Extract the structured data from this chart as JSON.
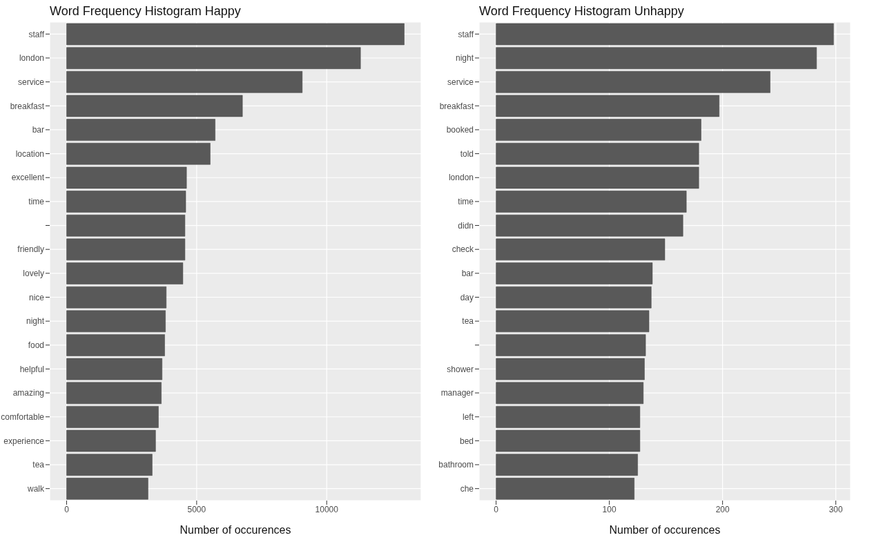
{
  "chart_data": [
    {
      "type": "bar",
      "orientation": "horizontal",
      "title": "Word Frequency Histogram Happy",
      "xlabel": "Number of occurences",
      "categories": [
        "staff",
        "london",
        "service",
        "breakfast",
        "bar",
        "location",
        "excellent",
        "time",
        null,
        "friendly",
        "lovely",
        "nice",
        "night",
        "food",
        "helpful",
        "amazing",
        "comfortable",
        "experience",
        "tea",
        "walk"
      ],
      "values": [
        12980,
        11300,
        9060,
        6760,
        5710,
        5520,
        4610,
        4580,
        4550,
        4550,
        4470,
        3830,
        3800,
        3770,
        3670,
        3640,
        3530,
        3420,
        3290,
        3130
      ],
      "color": "#595959",
      "xlim": [
        -650,
        13630
      ],
      "xticks": [
        0,
        5000,
        10000
      ],
      "grid": true
    },
    {
      "type": "bar",
      "orientation": "horizontal",
      "title": "Word Frequency Histogram Unhappy",
      "xlabel": "Number of occurences",
      "categories": [
        "staff",
        "night",
        "service",
        "breakfast",
        "booked",
        "told",
        "london",
        "time",
        "didn",
        "check",
        "bar",
        "day",
        "tea",
        null,
        "shower",
        "manager",
        "left",
        "bed",
        "bathroom",
        "che"
      ],
      "values": [
        298,
        283,
        242,
        197,
        181,
        179,
        179,
        168,
        165,
        149,
        138,
        137,
        135,
        132,
        131,
        130,
        127,
        127,
        125,
        122
      ],
      "color": "#595959",
      "xlim": [
        -15,
        313
      ],
      "xticks": [
        0,
        100,
        200,
        300
      ],
      "grid": true
    }
  ]
}
